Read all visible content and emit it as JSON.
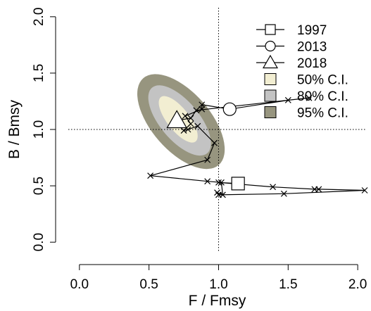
{
  "chart_data": {
    "type": "scatter",
    "title": "",
    "xlabel": "F / Fmsy",
    "ylabel": "B / Bmsy",
    "xlim": [
      -0.08,
      2.06
    ],
    "ylim": [
      -0.08,
      2.08
    ],
    "xticks": [
      0.0,
      0.5,
      1.0,
      1.5,
      2.0
    ],
    "xtick_labels": [
      "0.0",
      "0.5",
      "1.0",
      "1.5",
      "2.0"
    ],
    "yticks": [
      0.0,
      0.5,
      1.0,
      1.5,
      2.0
    ],
    "ytick_labels": [
      "0.0",
      "0.5",
      "1.0",
      "1.5",
      "2.0"
    ],
    "reference_lines": {
      "x": 1.0,
      "y": 1.0,
      "style": "dotted"
    },
    "trajectory": {
      "marker": "x",
      "points": [
        {
          "x": 1.14,
          "y": 0.52
        },
        {
          "x": 1.0,
          "y": 0.53
        },
        {
          "x": 1.39,
          "y": 0.49
        },
        {
          "x": 1.69,
          "y": 0.47
        },
        {
          "x": 1.72,
          "y": 0.47
        },
        {
          "x": 2.05,
          "y": 0.46
        },
        {
          "x": 1.47,
          "y": 0.43
        },
        {
          "x": 1.0,
          "y": 0.42
        },
        {
          "x": 0.99,
          "y": 0.44
        },
        {
          "x": 1.03,
          "y": 0.42
        },
        {
          "x": 1.02,
          "y": 0.53
        },
        {
          "x": 0.92,
          "y": 0.54
        },
        {
          "x": 0.51,
          "y": 0.59
        },
        {
          "x": 0.92,
          "y": 0.73
        },
        {
          "x": 0.97,
          "y": 0.88
        },
        {
          "x": 0.85,
          "y": 1.03
        },
        {
          "x": 0.78,
          "y": 1.0
        },
        {
          "x": 0.75,
          "y": 0.99
        },
        {
          "x": 0.8,
          "y": 1.05
        },
        {
          "x": 0.76,
          "y": 1.12
        },
        {
          "x": 0.88,
          "y": 1.18
        },
        {
          "x": 0.88,
          "y": 1.22
        },
        {
          "x": 1.08,
          "y": 1.18
        },
        {
          "x": 1.5,
          "y": 1.26
        },
        {
          "x": 1.65,
          "y": 1.28
        },
        {
          "x": 0.84,
          "y": 1.17
        },
        {
          "x": 0.8,
          "y": 1.1
        },
        {
          "x": 0.7,
          "y": 1.08
        }
      ]
    },
    "highlights": [
      {
        "label": "1997",
        "marker": "square",
        "x": 1.14,
        "y": 0.52
      },
      {
        "label": "2013",
        "marker": "circle",
        "x": 1.08,
        "y": 1.18
      },
      {
        "label": "2018",
        "marker": "triangle",
        "x": 0.7,
        "y": 1.08
      }
    ],
    "confidence_regions": [
      {
        "label": "95% C.I.",
        "color": "#97957f",
        "center": [
          0.73,
          1.07
        ],
        "halfwidths": [
          0.21,
          0.51
        ],
        "angle_deg": -41
      },
      {
        "label": "80% C.I.",
        "color": "#c3c3c3",
        "center": [
          0.72,
          1.08
        ],
        "halfwidths": [
          0.14,
          0.38
        ],
        "angle_deg": -40
      },
      {
        "label": "50% C.I.",
        "color": "#f2eed2",
        "center": [
          0.71,
          1.09
        ],
        "halfwidths": [
          0.08,
          0.25
        ],
        "angle_deg": -38
      }
    ],
    "legend": {
      "placement": "top-right",
      "entries": [
        {
          "label": "1997",
          "symbol": "square-line"
        },
        {
          "label": "2013",
          "symbol": "circle-line"
        },
        {
          "label": "2018",
          "symbol": "triangle-line"
        },
        {
          "label": "50% C.I.",
          "symbol": "filled-square",
          "color": "#f2eed2"
        },
        {
          "label": "80% C.I.",
          "symbol": "filled-square",
          "color": "#c3c3c3"
        },
        {
          "label": "95% C.I.",
          "symbol": "filled-square",
          "color": "#97957f"
        }
      ]
    }
  }
}
